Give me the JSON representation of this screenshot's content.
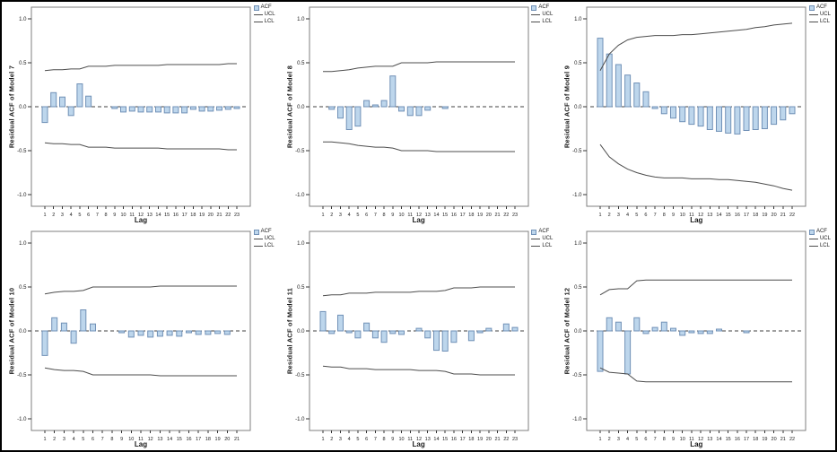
{
  "figure": {
    "description": "Grid of six residual autocorrelation (ACF) plots with upper and lower confidence limit lines",
    "rows": 2,
    "cols": 3
  },
  "colors": {
    "bar_fill": "#bdd6ec",
    "bar_stroke": "#7191b7",
    "conf_line": "#4d4d4d",
    "zero_line": "#404040",
    "axis_box": "#7f7f7f",
    "text": "#1a1a1a",
    "background": "#ffffff",
    "outer_border": "#000000"
  },
  "chart_data": [
    {
      "type": "bar",
      "ylabel": "Residual ACF of Model 7",
      "xlabel": "Lag",
      "legend": {
        "acf": "ACF",
        "ucl": "UCL",
        "lcl": "LCL"
      },
      "ylim": [
        -1,
        1
      ],
      "ytick_values": [
        1,
        0.5,
        0,
        -0.5,
        -1
      ],
      "ytick_labels": [
        "1.0",
        "0.5",
        "0.0",
        "-0.5",
        "-1.0"
      ],
      "lags": [
        1,
        2,
        3,
        4,
        5,
        6,
        7,
        8,
        9,
        10,
        11,
        12,
        13,
        14,
        15,
        16,
        17,
        18,
        19,
        20,
        21,
        22,
        23
      ],
      "acf": [
        -0.18,
        0.16,
        0.11,
        -0.1,
        0.26,
        0.12,
        -0.01,
        -0.01,
        -0.02,
        -0.06,
        -0.05,
        -0.06,
        -0.06,
        -0.06,
        -0.07,
        -0.07,
        -0.07,
        -0.03,
        -0.05,
        -0.05,
        -0.04,
        -0.03,
        -0.02
      ],
      "ucl": [
        0.41,
        0.42,
        0.42,
        0.43,
        0.43,
        0.46,
        0.46,
        0.46,
        0.47,
        0.47,
        0.47,
        0.47,
        0.47,
        0.47,
        0.48,
        0.48,
        0.48,
        0.48,
        0.48,
        0.48,
        0.48,
        0.49,
        0.49
      ],
      "lcl": [
        -0.41,
        -0.42,
        -0.42,
        -0.43,
        -0.43,
        -0.46,
        -0.46,
        -0.46,
        -0.47,
        -0.47,
        -0.47,
        -0.47,
        -0.47,
        -0.47,
        -0.48,
        -0.48,
        -0.48,
        -0.48,
        -0.48,
        -0.48,
        -0.48,
        -0.49,
        -0.49
      ]
    },
    {
      "type": "bar",
      "ylabel": "Residual ACF of Model 8",
      "xlabel": "Lag",
      "legend": {
        "acf": "ACF",
        "ucl": "UCL",
        "lcl": "LCL"
      },
      "ylim": [
        -1,
        1
      ],
      "ytick_values": [
        1,
        0.5,
        0,
        -0.5,
        -1
      ],
      "ytick_labels": [
        "1.0",
        "0.5",
        "0.0",
        "-0.5",
        "-1.0"
      ],
      "lags": [
        1,
        2,
        3,
        4,
        5,
        6,
        7,
        8,
        9,
        10,
        11,
        12,
        13,
        14,
        15,
        16,
        17,
        18,
        19,
        20,
        21,
        22,
        23
      ],
      "acf": [
        -0.01,
        -0.03,
        -0.13,
        -0.26,
        -0.22,
        0.07,
        0.02,
        0.07,
        0.35,
        -0.05,
        -0.1,
        -0.1,
        -0.04,
        -0.01,
        -0.02,
        -0.01,
        -0.01,
        0.01,
        -0.01,
        -0.01,
        -0.01,
        -0.01,
        -0.01
      ],
      "ucl": [
        0.4,
        0.4,
        0.41,
        0.42,
        0.44,
        0.45,
        0.46,
        0.46,
        0.46,
        0.5,
        0.5,
        0.5,
        0.5,
        0.51,
        0.51,
        0.51,
        0.51,
        0.51,
        0.51,
        0.51,
        0.51,
        0.51,
        0.51
      ],
      "lcl": [
        -0.4,
        -0.4,
        -0.41,
        -0.42,
        -0.44,
        -0.45,
        -0.46,
        -0.46,
        -0.47,
        -0.5,
        -0.5,
        -0.5,
        -0.5,
        -0.51,
        -0.51,
        -0.51,
        -0.51,
        -0.51,
        -0.51,
        -0.51,
        -0.51,
        -0.51,
        -0.51
      ]
    },
    {
      "type": "bar",
      "ylabel": "Residual ACF of Model 9",
      "xlabel": "Lag",
      "legend": {
        "acf": "ACF",
        "ucl": "UCL",
        "lcl": "LCL"
      },
      "ylim": [
        -1,
        1
      ],
      "ytick_values": [
        1,
        0.5,
        0,
        -0.5,
        -1
      ],
      "ytick_labels": [
        "1.0",
        "0.5",
        "0.0",
        "-0.5",
        "-1.0"
      ],
      "lags": [
        1,
        2,
        3,
        4,
        5,
        6,
        7,
        8,
        9,
        10,
        11,
        12,
        13,
        14,
        15,
        16,
        17,
        18,
        19,
        20,
        21,
        22
      ],
      "acf": [
        0.78,
        0.6,
        0.48,
        0.36,
        0.27,
        0.17,
        -0.02,
        -0.08,
        -0.13,
        -0.17,
        -0.2,
        -0.22,
        -0.26,
        -0.28,
        -0.3,
        -0.31,
        -0.27,
        -0.26,
        -0.25,
        -0.2,
        -0.15,
        -0.08
      ],
      "ucl": [
        0.41,
        0.6,
        0.7,
        0.76,
        0.79,
        0.8,
        0.81,
        0.81,
        0.81,
        0.82,
        0.82,
        0.83,
        0.84,
        0.85,
        0.86,
        0.87,
        0.88,
        0.9,
        0.91,
        0.93,
        0.94,
        0.95
      ],
      "lcl": [
        -0.43,
        -0.57,
        -0.65,
        -0.71,
        -0.75,
        -0.78,
        -0.8,
        -0.81,
        -0.81,
        -0.81,
        -0.82,
        -0.82,
        -0.82,
        -0.83,
        -0.83,
        -0.84,
        -0.85,
        -0.86,
        -0.88,
        -0.9,
        -0.93,
        -0.95
      ]
    },
    {
      "type": "bar",
      "ylabel": "Residual ACF of Model 10",
      "xlabel": "Lag",
      "legend": {
        "acf": "ACF",
        "ucl": "UCL",
        "lcl": "LCL"
      },
      "ylim": [
        -1,
        1
      ],
      "ytick_values": [
        1,
        0.5,
        0,
        -0.5,
        -1
      ],
      "ytick_labels": [
        "1.0",
        "0.5",
        "0.0",
        "-0.5",
        "-1.0"
      ],
      "lags": [
        1,
        2,
        3,
        4,
        5,
        6,
        7,
        8,
        9,
        10,
        11,
        12,
        13,
        14,
        15,
        16,
        17,
        18,
        19,
        20,
        21
      ],
      "acf": [
        -0.28,
        0.15,
        0.09,
        -0.14,
        0.24,
        0.08,
        -0.01,
        -0.01,
        -0.02,
        -0.07,
        -0.05,
        -0.07,
        -0.06,
        -0.05,
        -0.06,
        -0.02,
        -0.04,
        -0.04,
        -0.03,
        -0.04,
        -0.01
      ],
      "ucl": [
        0.42,
        0.44,
        0.45,
        0.45,
        0.46,
        0.5,
        0.5,
        0.5,
        0.5,
        0.5,
        0.5,
        0.5,
        0.51,
        0.51,
        0.51,
        0.51,
        0.51,
        0.51,
        0.51,
        0.51,
        0.51
      ],
      "lcl": [
        -0.42,
        -0.44,
        -0.45,
        -0.45,
        -0.46,
        -0.5,
        -0.5,
        -0.5,
        -0.5,
        -0.5,
        -0.5,
        -0.5,
        -0.51,
        -0.51,
        -0.51,
        -0.51,
        -0.51,
        -0.51,
        -0.51,
        -0.51,
        -0.51
      ]
    },
    {
      "type": "bar",
      "ylabel": "Residual ACF of Model 11",
      "xlabel": "Lag",
      "legend": {
        "acf": "ACF",
        "ucl": "UCL",
        "lcl": "LCL"
      },
      "ylim": [
        -1,
        1
      ],
      "ytick_values": [
        1,
        0.5,
        0,
        -0.5,
        -1
      ],
      "ytick_labels": [
        "1.0",
        "0.5",
        "0.0",
        "-0.5",
        "-1.0"
      ],
      "lags": [
        1,
        2,
        3,
        4,
        5,
        6,
        7,
        8,
        9,
        10,
        11,
        12,
        13,
        14,
        15,
        16,
        17,
        18,
        19,
        20,
        21,
        22,
        23
      ],
      "acf": [
        0.22,
        -0.03,
        0.18,
        -0.02,
        -0.08,
        0.09,
        -0.08,
        -0.13,
        -0.03,
        -0.04,
        -0.01,
        0.03,
        -0.08,
        -0.22,
        -0.23,
        -0.13,
        -0.01,
        -0.11,
        -0.02,
        0.03,
        0.01,
        0.08,
        0.04
      ],
      "ucl": [
        0.4,
        0.41,
        0.41,
        0.43,
        0.43,
        0.43,
        0.44,
        0.44,
        0.44,
        0.44,
        0.44,
        0.45,
        0.45,
        0.45,
        0.46,
        0.49,
        0.49,
        0.49,
        0.5,
        0.5,
        0.5,
        0.5,
        0.5
      ],
      "lcl": [
        -0.4,
        -0.41,
        -0.41,
        -0.43,
        -0.43,
        -0.43,
        -0.44,
        -0.44,
        -0.44,
        -0.44,
        -0.44,
        -0.45,
        -0.45,
        -0.45,
        -0.46,
        -0.49,
        -0.49,
        -0.49,
        -0.5,
        -0.5,
        -0.5,
        -0.5,
        -0.5
      ]
    },
    {
      "type": "bar",
      "ylabel": "Residual ACF of Model 12",
      "xlabel": "Lag",
      "legend": {
        "acf": "ACF",
        "ucl": "UCL",
        "lcl": "LCL"
      },
      "ylim": [
        -1,
        1
      ],
      "ytick_values": [
        1,
        0.5,
        0,
        -0.5,
        -1
      ],
      "ytick_labels": [
        "1.0",
        "0.5",
        "0.0",
        "-0.5",
        "-1.0"
      ],
      "lags": [
        1,
        2,
        3,
        4,
        5,
        6,
        7,
        8,
        9,
        10,
        11,
        12,
        13,
        14,
        15,
        16,
        17,
        18,
        19,
        20,
        21,
        22
      ],
      "acf": [
        -0.46,
        0.15,
        0.1,
        -0.49,
        0.15,
        -0.03,
        0.04,
        0.1,
        0.03,
        -0.05,
        -0.02,
        -0.03,
        -0.03,
        0.02,
        0.01,
        -0.01,
        -0.02,
        -0.01,
        -0.01,
        -0.01,
        0.01,
        -0.01
      ],
      "ucl": [
        0.41,
        0.47,
        0.48,
        0.48,
        0.57,
        0.58,
        0.58,
        0.58,
        0.58,
        0.58,
        0.58,
        0.58,
        0.58,
        0.58,
        0.58,
        0.58,
        0.58,
        0.58,
        0.58,
        0.58,
        0.58,
        0.58
      ],
      "lcl": [
        -0.42,
        -0.47,
        -0.48,
        -0.49,
        -0.57,
        -0.58,
        -0.58,
        -0.58,
        -0.58,
        -0.58,
        -0.58,
        -0.58,
        -0.58,
        -0.58,
        -0.58,
        -0.58,
        -0.58,
        -0.58,
        -0.58,
        -0.58,
        -0.58,
        -0.58
      ]
    }
  ]
}
